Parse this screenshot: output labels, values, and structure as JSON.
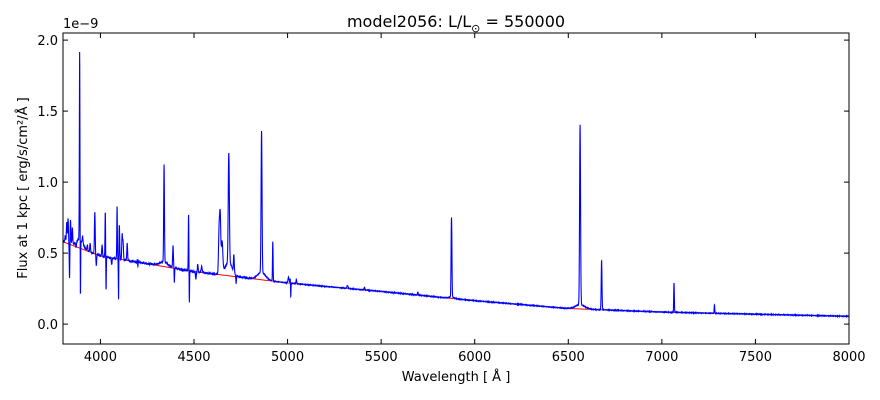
{
  "chart_data": {
    "type": "line",
    "title_main": "model2056: L/L",
    "title_sub": "⊙",
    "title_tail": " = 550000",
    "xlabel": "Wavelength [ Å ]",
    "ylabel": "Flux at 1 kpc [ erg/s/cm²/Å ]",
    "offset_text": "1e−9",
    "xlim": [
      3800,
      8000
    ],
    "ylim": [
      -0.14,
      2.05
    ],
    "xticks": [
      4000,
      4500,
      5000,
      5500,
      6000,
      6500,
      7000,
      7500,
      8000
    ],
    "yticks": [
      0.0,
      0.5,
      1.0,
      1.5,
      2.0
    ],
    "ytick_labels": [
      "0.0",
      "0.5",
      "1.0",
      "1.5",
      "2.0"
    ],
    "continuum": {
      "color": "#ff0000",
      "points": [
        [
          3800,
          0.58
        ],
        [
          4000,
          0.48
        ],
        [
          4500,
          0.37
        ],
        [
          5000,
          0.29
        ],
        [
          5500,
          0.23
        ],
        [
          6000,
          0.165
        ],
        [
          6500,
          0.11
        ],
        [
          7000,
          0.085
        ],
        [
          7500,
          0.07
        ],
        [
          8000,
          0.055
        ]
      ]
    },
    "spectrum": {
      "color": "#0000ff",
      "lines": [
        {
          "x": 3812,
          "h": 0.05,
          "w": 2
        },
        {
          "x": 3820,
          "h": 0.15,
          "w": 2
        },
        {
          "x": 3827,
          "h": 0.18,
          "w": 2
        },
        {
          "x": 3835,
          "h": -0.25,
          "w": 1.5
        },
        {
          "x": 3840,
          "h": 0.17,
          "w": 2
        },
        {
          "x": 3850,
          "h": 0.12,
          "w": 2
        },
        {
          "x": 3870,
          "h": -0.04,
          "w": 2
        },
        {
          "x": 3889,
          "h": 1.33,
          "w": 1.5
        },
        {
          "x": 3893,
          "h": -0.44,
          "w": 1.2
        },
        {
          "x": 3905,
          "h": 0.05,
          "w": 2
        },
        {
          "x": 3930,
          "h": 0.04,
          "w": 2
        },
        {
          "x": 3945,
          "h": 0.06,
          "w": 2
        },
        {
          "x": 3970,
          "h": 0.3,
          "w": 2
        },
        {
          "x": 3978,
          "h": -0.08,
          "w": 2
        },
        {
          "x": 4009,
          "h": 0.08,
          "w": 2
        },
        {
          "x": 4026,
          "h": 0.32,
          "w": 1.5
        },
        {
          "x": 4030,
          "h": -0.25,
          "w": 1.2
        },
        {
          "x": 4060,
          "h": -0.05,
          "w": 2
        },
        {
          "x": 4089,
          "h": 0.37,
          "w": 1.5
        },
        {
          "x": 4101,
          "h": 0.24,
          "w": 2
        },
        {
          "x": 4097,
          "h": -0.31,
          "w": 1.2
        },
        {
          "x": 4116,
          "h": 0.18,
          "w": 2
        },
        {
          "x": 4121,
          "h": 0.13,
          "w": 2
        },
        {
          "x": 4143,
          "h": 0.12,
          "w": 2
        },
        {
          "x": 4200,
          "h": 0.03,
          "w": 3
        },
        {
          "x": 4200,
          "h": -0.06,
          "w": 1.2
        },
        {
          "x": 4340,
          "h": 0.69,
          "w": 2
        },
        {
          "x": 4388,
          "h": 0.15,
          "w": 2
        },
        {
          "x": 4395,
          "h": -0.1,
          "w": 1.2
        },
        {
          "x": 4471,
          "h": 0.4,
          "w": 1.5
        },
        {
          "x": 4475,
          "h": -0.23,
          "w": 1.2
        },
        {
          "x": 4510,
          "h": -0.05,
          "w": 2
        },
        {
          "x": 4520,
          "h": 0.05,
          "w": 2
        },
        {
          "x": 4541,
          "h": 0.04,
          "w": 3
        },
        {
          "x": 4634,
          "h": 0.3,
          "w": 3
        },
        {
          "x": 4640,
          "h": 0.4,
          "w": 3
        },
        {
          "x": 4650,
          "h": 0.22,
          "w": 4
        },
        {
          "x": 4686,
          "h": 0.78,
          "w": 3
        },
        {
          "x": 4713,
          "h": 0.12,
          "w": 2
        },
        {
          "x": 4725,
          "h": -0.06,
          "w": 1.5
        },
        {
          "x": 4861,
          "h": 1.0,
          "w": 2.5
        },
        {
          "x": 4921,
          "h": 0.28,
          "w": 1.5
        },
        {
          "x": 5005,
          "h": 0.04,
          "w": 3
        },
        {
          "x": 5015,
          "h": 0.04,
          "w": 2
        },
        {
          "x": 5017,
          "h": -0.12,
          "w": 1.2
        },
        {
          "x": 5047,
          "h": 0.03,
          "w": 2
        },
        {
          "x": 5320,
          "h": 0.02,
          "w": 3
        },
        {
          "x": 5411,
          "h": 0.02,
          "w": 2
        },
        {
          "x": 5696,
          "h": 0.02,
          "w": 2
        },
        {
          "x": 5876,
          "h": 0.65,
          "w": 2
        },
        {
          "x": 5876,
          "h": -0.09,
          "w": 1.0
        },
        {
          "x": 6563,
          "h": 1.27,
          "w": 2.5
        },
        {
          "x": 6678,
          "h": 0.35,
          "w": 2
        },
        {
          "x": 7065,
          "h": 0.25,
          "w": 1.5
        },
        {
          "x": 7065,
          "h": -0.04,
          "w": 1.0
        },
        {
          "x": 7281,
          "h": 0.06,
          "w": 1.5
        }
      ],
      "wings": [
        {
          "x": 3889,
          "h": 0.06,
          "w": 18
        },
        {
          "x": 4340,
          "h": 0.03,
          "w": 25
        },
        {
          "x": 4686,
          "h": 0.09,
          "w": 20
        },
        {
          "x": 4861,
          "h": 0.05,
          "w": 22
        },
        {
          "x": 6563,
          "h": 0.03,
          "w": 25
        },
        {
          "x": 5876,
          "h": 0.01,
          "w": 15
        }
      ]
    }
  }
}
